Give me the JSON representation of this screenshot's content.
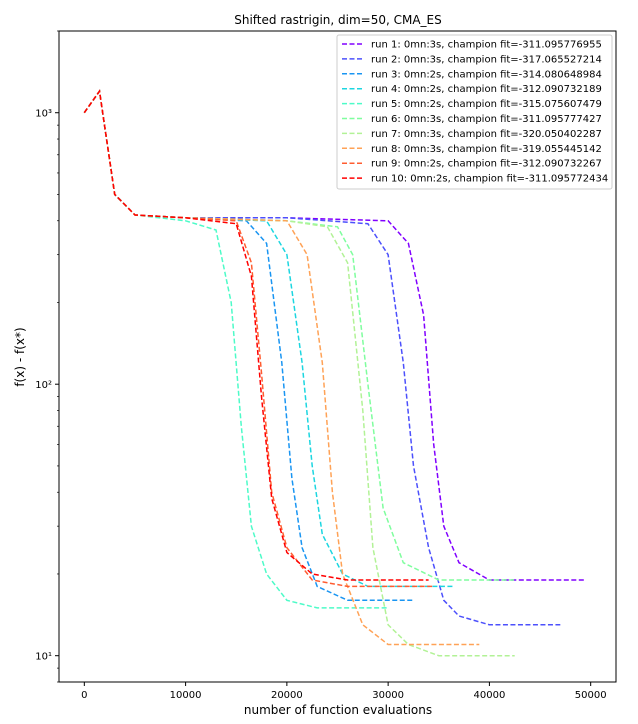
{
  "chart_data": {
    "type": "line",
    "title": "Shifted rastrigin, dim=50, CMA_ES",
    "xlabel": "number of function evaluations",
    "ylabel": "f(x) - f(x*)",
    "xlim": [
      -2500,
      52500
    ],
    "ylim": [
      8,
      2000
    ],
    "yscale": "log",
    "x_ticks": [
      0,
      10000,
      20000,
      30000,
      40000,
      50000
    ],
    "y_ticks": [
      {
        "value": 10,
        "label": "10¹"
      },
      {
        "value": 100,
        "label": "10²"
      },
      {
        "value": 1000,
        "label": "10³"
      }
    ],
    "line_style": "dashed",
    "legend_position": "top-right",
    "grid": false,
    "series": [
      {
        "name": "run  1: 0mn:3s, champion fit=-311.095776955",
        "color": "#8000ff",
        "points": [
          [
            0,
            1000
          ],
          [
            1500,
            1200
          ],
          [
            3000,
            500
          ],
          [
            5000,
            420
          ],
          [
            10000,
            410
          ],
          [
            20000,
            410
          ],
          [
            30000,
            400
          ],
          [
            32000,
            330
          ],
          [
            33500,
            180
          ],
          [
            34500,
            60
          ],
          [
            35500,
            30
          ],
          [
            37000,
            22
          ],
          [
            40000,
            19
          ],
          [
            42000,
            19
          ],
          [
            49500,
            19
          ]
        ]
      },
      {
        "name": "run  2: 0mn:3s, champion fit=-317.065527214",
        "color": "#4c50fc",
        "points": [
          [
            0,
            1000
          ],
          [
            1500,
            1200
          ],
          [
            3000,
            500
          ],
          [
            5000,
            420
          ],
          [
            10000,
            410
          ],
          [
            20000,
            410
          ],
          [
            28000,
            390
          ],
          [
            30000,
            300
          ],
          [
            31500,
            120
          ],
          [
            32500,
            50
          ],
          [
            34000,
            25
          ],
          [
            35500,
            16
          ],
          [
            37000,
            14
          ],
          [
            40000,
            13
          ],
          [
            47000,
            13
          ]
        ]
      },
      {
        "name": "run  3: 0mn:2s, champion fit=-314.080648984",
        "color": "#1995f2",
        "points": [
          [
            0,
            1000
          ],
          [
            1500,
            1200
          ],
          [
            3000,
            500
          ],
          [
            5000,
            420
          ],
          [
            10000,
            410
          ],
          [
            16000,
            400
          ],
          [
            18000,
            330
          ],
          [
            19500,
            120
          ],
          [
            20500,
            45
          ],
          [
            21500,
            25
          ],
          [
            23000,
            18
          ],
          [
            26000,
            16
          ],
          [
            32500,
            16
          ]
        ]
      },
      {
        "name": "run  4: 0mn:2s, champion fit=-312.090732189",
        "color": "#1cd6e0",
        "points": [
          [
            0,
            1000
          ],
          [
            1500,
            1200
          ],
          [
            3000,
            500
          ],
          [
            5000,
            420
          ],
          [
            10000,
            410
          ],
          [
            18000,
            400
          ],
          [
            20000,
            300
          ],
          [
            21500,
            120
          ],
          [
            22500,
            50
          ],
          [
            23500,
            28
          ],
          [
            25500,
            20
          ],
          [
            28000,
            18
          ],
          [
            36500,
            18
          ]
        ]
      },
      {
        "name": "run  5: 0mn:2s, champion fit=-315.075607479",
        "color": "#4dfbc8",
        "points": [
          [
            0,
            1000
          ],
          [
            1500,
            1200
          ],
          [
            3000,
            500
          ],
          [
            5000,
            420
          ],
          [
            10000,
            400
          ],
          [
            13000,
            370
          ],
          [
            14500,
            200
          ],
          [
            15500,
            70
          ],
          [
            16500,
            30
          ],
          [
            18000,
            20
          ],
          [
            20000,
            16
          ],
          [
            23000,
            15
          ],
          [
            30000,
            15
          ]
        ]
      },
      {
        "name": "run  6: 0mn:3s, champion fit=-311.095777427",
        "color": "#7ffe9e",
        "points": [
          [
            0,
            1000
          ],
          [
            1500,
            1200
          ],
          [
            3000,
            500
          ],
          [
            5000,
            420
          ],
          [
            10000,
            410
          ],
          [
            20000,
            400
          ],
          [
            25000,
            380
          ],
          [
            26500,
            300
          ],
          [
            28000,
            100
          ],
          [
            29500,
            35
          ],
          [
            31500,
            22
          ],
          [
            35000,
            19
          ],
          [
            42500,
            19
          ]
        ]
      },
      {
        "name": "run  7: 0mn:3s, champion fit=-320.050402287",
        "color": "#b2f296",
        "points": [
          [
            0,
            1000
          ],
          [
            1500,
            1200
          ],
          [
            3000,
            500
          ],
          [
            5000,
            420
          ],
          [
            10000,
            410
          ],
          [
            20000,
            400
          ],
          [
            24000,
            380
          ],
          [
            26000,
            280
          ],
          [
            27500,
            80
          ],
          [
            28500,
            25
          ],
          [
            30000,
            13
          ],
          [
            32000,
            11
          ],
          [
            35000,
            10
          ],
          [
            42500,
            10
          ]
        ]
      },
      {
        "name": "run  8: 0mn:3s, champion fit=-319.055445142",
        "color": "#ffa256",
        "points": [
          [
            0,
            1000
          ],
          [
            1500,
            1200
          ],
          [
            3000,
            500
          ],
          [
            5000,
            420
          ],
          [
            10000,
            410
          ],
          [
            20000,
            400
          ],
          [
            22000,
            300
          ],
          [
            23500,
            120
          ],
          [
            24500,
            40
          ],
          [
            25500,
            20
          ],
          [
            27500,
            13
          ],
          [
            30000,
            11
          ],
          [
            39000,
            11
          ]
        ]
      },
      {
        "name": "run  9: 0mn:2s, champion fit=-312.090732267",
        "color": "#ff5c30",
        "points": [
          [
            0,
            1000
          ],
          [
            1500,
            1200
          ],
          [
            3000,
            500
          ],
          [
            5000,
            420
          ],
          [
            10000,
            410
          ],
          [
            15000,
            400
          ],
          [
            16500,
            280
          ],
          [
            17500,
            110
          ],
          [
            18500,
            40
          ],
          [
            20000,
            25
          ],
          [
            22500,
            19
          ],
          [
            26000,
            18
          ],
          [
            34500,
            18
          ]
        ]
      },
      {
        "name": "run 10: 0mn:2s, champion fit=-311.095772434",
        "color": "#ff0000",
        "points": [
          [
            0,
            1000
          ],
          [
            1500,
            1200
          ],
          [
            3000,
            500
          ],
          [
            5000,
            420
          ],
          [
            10000,
            410
          ],
          [
            15000,
            390
          ],
          [
            16500,
            250
          ],
          [
            17500,
            90
          ],
          [
            18500,
            38
          ],
          [
            20000,
            24
          ],
          [
            22500,
            20
          ],
          [
            26000,
            19
          ],
          [
            34000,
            19
          ]
        ]
      }
    ]
  }
}
